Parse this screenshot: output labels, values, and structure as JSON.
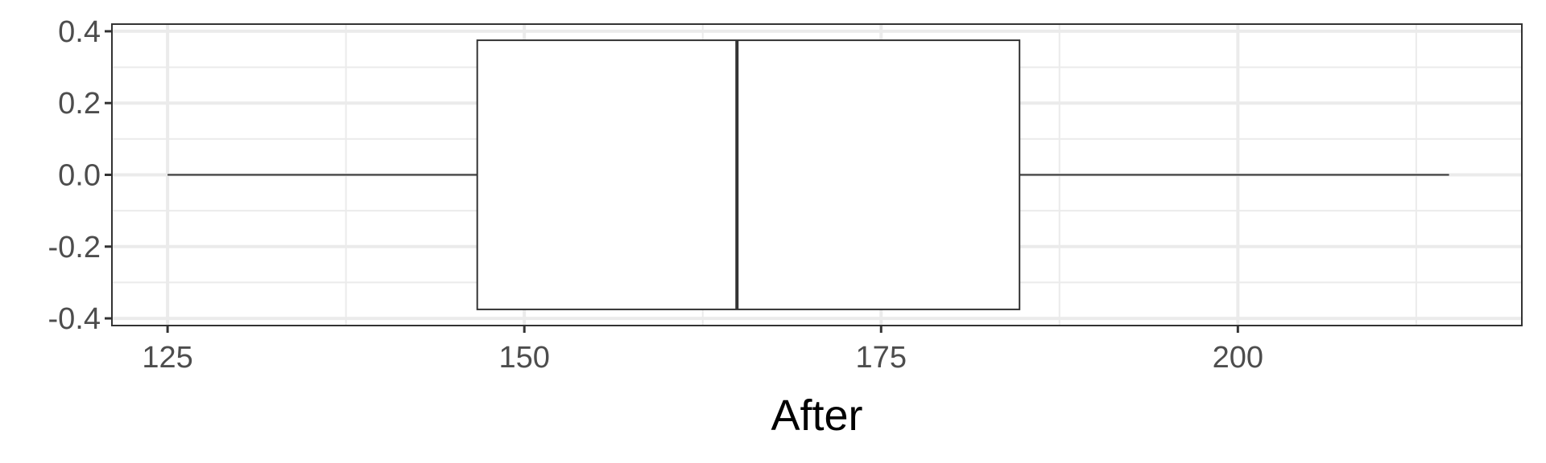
{
  "chart_data": {
    "type": "boxplot",
    "title": "",
    "xlabel": "After",
    "ylabel": "",
    "xlim": [
      121.1,
      219.9
    ],
    "ylim": [
      -0.42,
      0.42
    ],
    "x_ticks": [
      125,
      150,
      175,
      200
    ],
    "x_tick_labels": [
      "125",
      "150",
      "175",
      "200"
    ],
    "x_minor_ticks": [
      137.5,
      162.5,
      187.5,
      212.5
    ],
    "y_ticks": [
      0.4,
      0.2,
      0.0,
      -0.2,
      -0.4
    ],
    "y_tick_labels": [
      "0.4",
      "0.2",
      "0.0",
      "-0.2",
      "-0.4"
    ],
    "y_minor_ticks": [
      0.3,
      0.1,
      -0.1,
      -0.3
    ],
    "grid": true,
    "box": {
      "min": 125,
      "q1": 146.7,
      "median": 164.9,
      "q3": 184.7,
      "max": 214.8,
      "y_center": 0.0,
      "half_width": 0.375
    },
    "colors": {
      "panel_border": "#333333",
      "grid": "#ebebeb",
      "box_fill": "#ffffff",
      "box_stroke": "#333333"
    }
  }
}
